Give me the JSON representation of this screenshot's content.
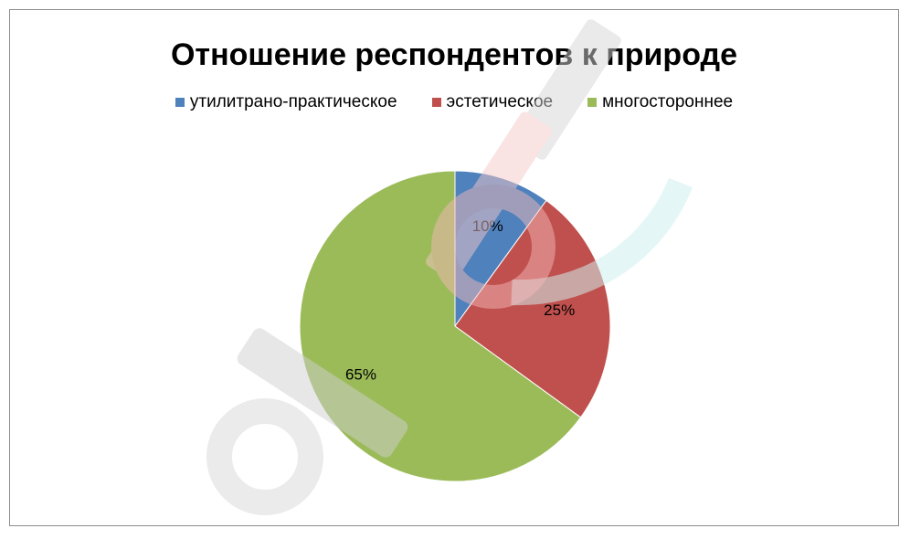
{
  "chart_data": {
    "type": "pie",
    "title": "Отношение респондентов к природе",
    "categories": [
      "утилитрано-практическое",
      "эстетическое",
      "многостороннее"
    ],
    "values": [
      10,
      25,
      65
    ],
    "data_labels": [
      "10%",
      "25%",
      "65%"
    ],
    "colors": [
      "#4f81bd",
      "#c0504d",
      "#9bbb59"
    ],
    "legend_position": "top",
    "start_angle": "12 o'clock",
    "direction": "clockwise"
  },
  "watermark": {
    "text": "eurok",
    "colors": [
      "#e6e6e6",
      "#f9d5d5",
      "#d7f1f1"
    ]
  }
}
